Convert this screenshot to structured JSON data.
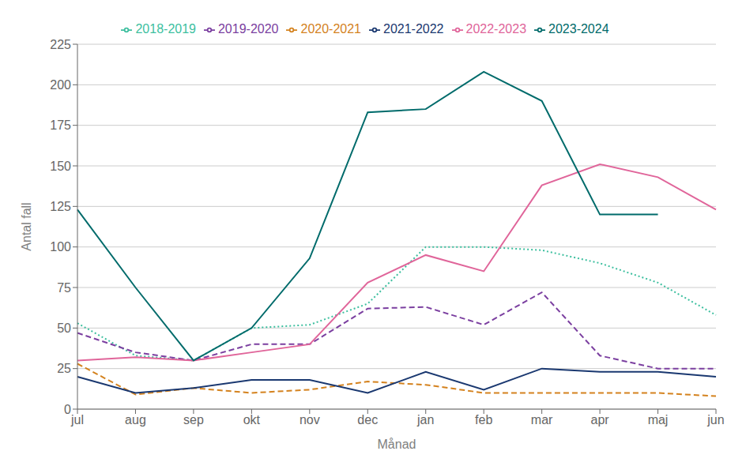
{
  "chart_data": {
    "type": "line",
    "xlabel": "Månad",
    "ylabel": "Antal fall",
    "categories": [
      "jul",
      "aug",
      "sep",
      "okt",
      "nov",
      "dec",
      "jan",
      "feb",
      "mar",
      "apr",
      "maj",
      "jun"
    ],
    "series": [
      {
        "name": "2018-2019",
        "color": "#3dbf9f",
        "line_style": "dotted",
        "values": [
          53,
          33,
          30,
          50,
          52,
          65,
          100,
          100,
          98,
          90,
          78,
          58
        ]
      },
      {
        "name": "2019-2020",
        "color": "#7b3fa0",
        "line_style": "dashed",
        "values": [
          47,
          35,
          30,
          40,
          40,
          62,
          63,
          52,
          72,
          33,
          25,
          25
        ]
      },
      {
        "name": "2020-2021",
        "color": "#d4821e",
        "line_style": "dashed",
        "values": [
          28,
          9,
          13,
          10,
          12,
          17,
          15,
          10,
          10,
          10,
          10,
          8
        ]
      },
      {
        "name": "2021-2022",
        "color": "#1a3870",
        "line_style": "solid",
        "values": [
          20,
          10,
          13,
          18,
          18,
          10,
          23,
          12,
          25,
          23,
          23,
          20
        ]
      },
      {
        "name": "2022-2023",
        "color": "#e0659a",
        "line_style": "solid",
        "values": [
          30,
          32,
          30,
          35,
          40,
          78,
          95,
          85,
          138,
          151,
          143,
          123
        ]
      },
      {
        "name": "2023-2024",
        "color": "#006b6b",
        "line_style": "solid",
        "values": [
          123,
          75,
          30,
          50,
          93,
          183,
          185,
          208,
          190,
          120,
          120,
          null
        ]
      }
    ],
    "ylim": [
      0,
      225
    ],
    "yticks": [
      0,
      25,
      50,
      75,
      100,
      125,
      150,
      175,
      200,
      225
    ],
    "grid": true,
    "legend": "top"
  }
}
